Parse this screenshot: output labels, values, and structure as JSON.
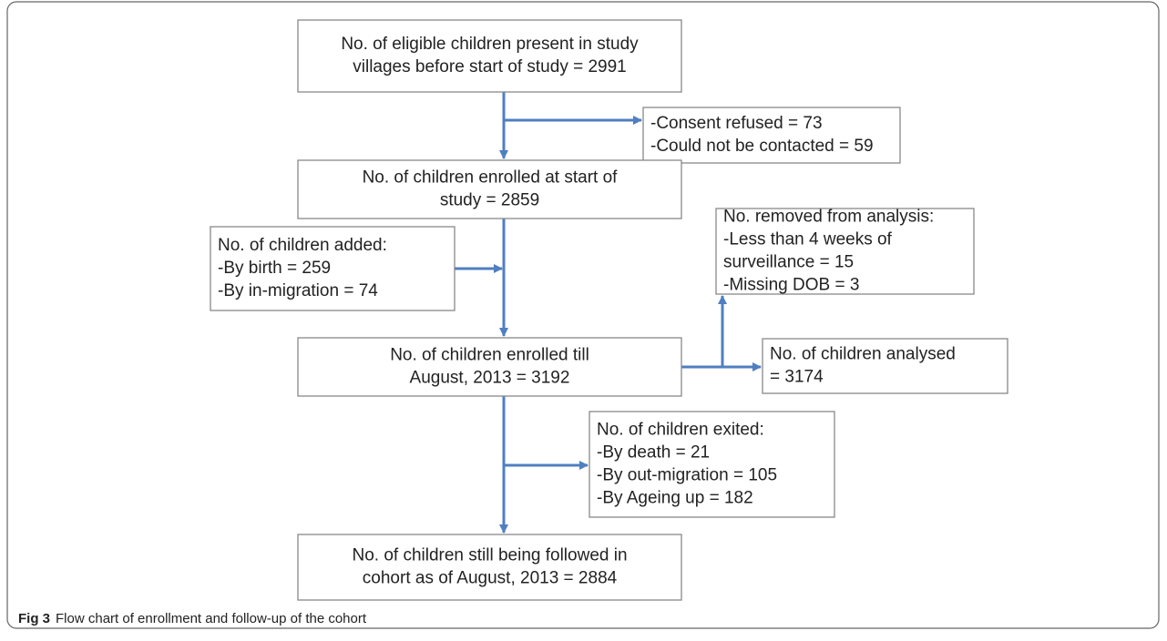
{
  "nodes": [
    {
      "lines": [
        "No. of eligible children present in study",
        "villages before start of study = 2991"
      ]
    },
    {
      "lines": [
        "-Consent refused = 73",
        "-Could not be contacted = 59"
      ]
    },
    {
      "lines": [
        "No. of children enrolled at start of",
        "study = 2859"
      ]
    },
    {
      "lines": [
        "No. of children added:",
        "-By birth = 259",
        "-By in-migration = 74"
      ]
    },
    {
      "lines": [
        "No. removed from analysis:",
        "-Less than 4 weeks of",
        "surveillance = 15",
        "-Missing DOB = 3"
      ]
    },
    {
      "lines": [
        "No. of children enrolled till",
        "August, 2013 = 3192"
      ]
    },
    {
      "lines": [
        "No. of children analysed",
        "= 3174"
      ]
    },
    {
      "lines": [
        "No. of children exited:",
        "-By death = 21",
        "-By out-migration = 105",
        "-By Ageing up = 182"
      ]
    },
    {
      "lines": [
        "No. of children still being followed in",
        "cohort as of August, 2013 = 2884"
      ]
    }
  ],
  "caption": {
    "label": "Fig 3",
    "text": "Flow chart of enrollment and follow-up of the cohort"
  }
}
